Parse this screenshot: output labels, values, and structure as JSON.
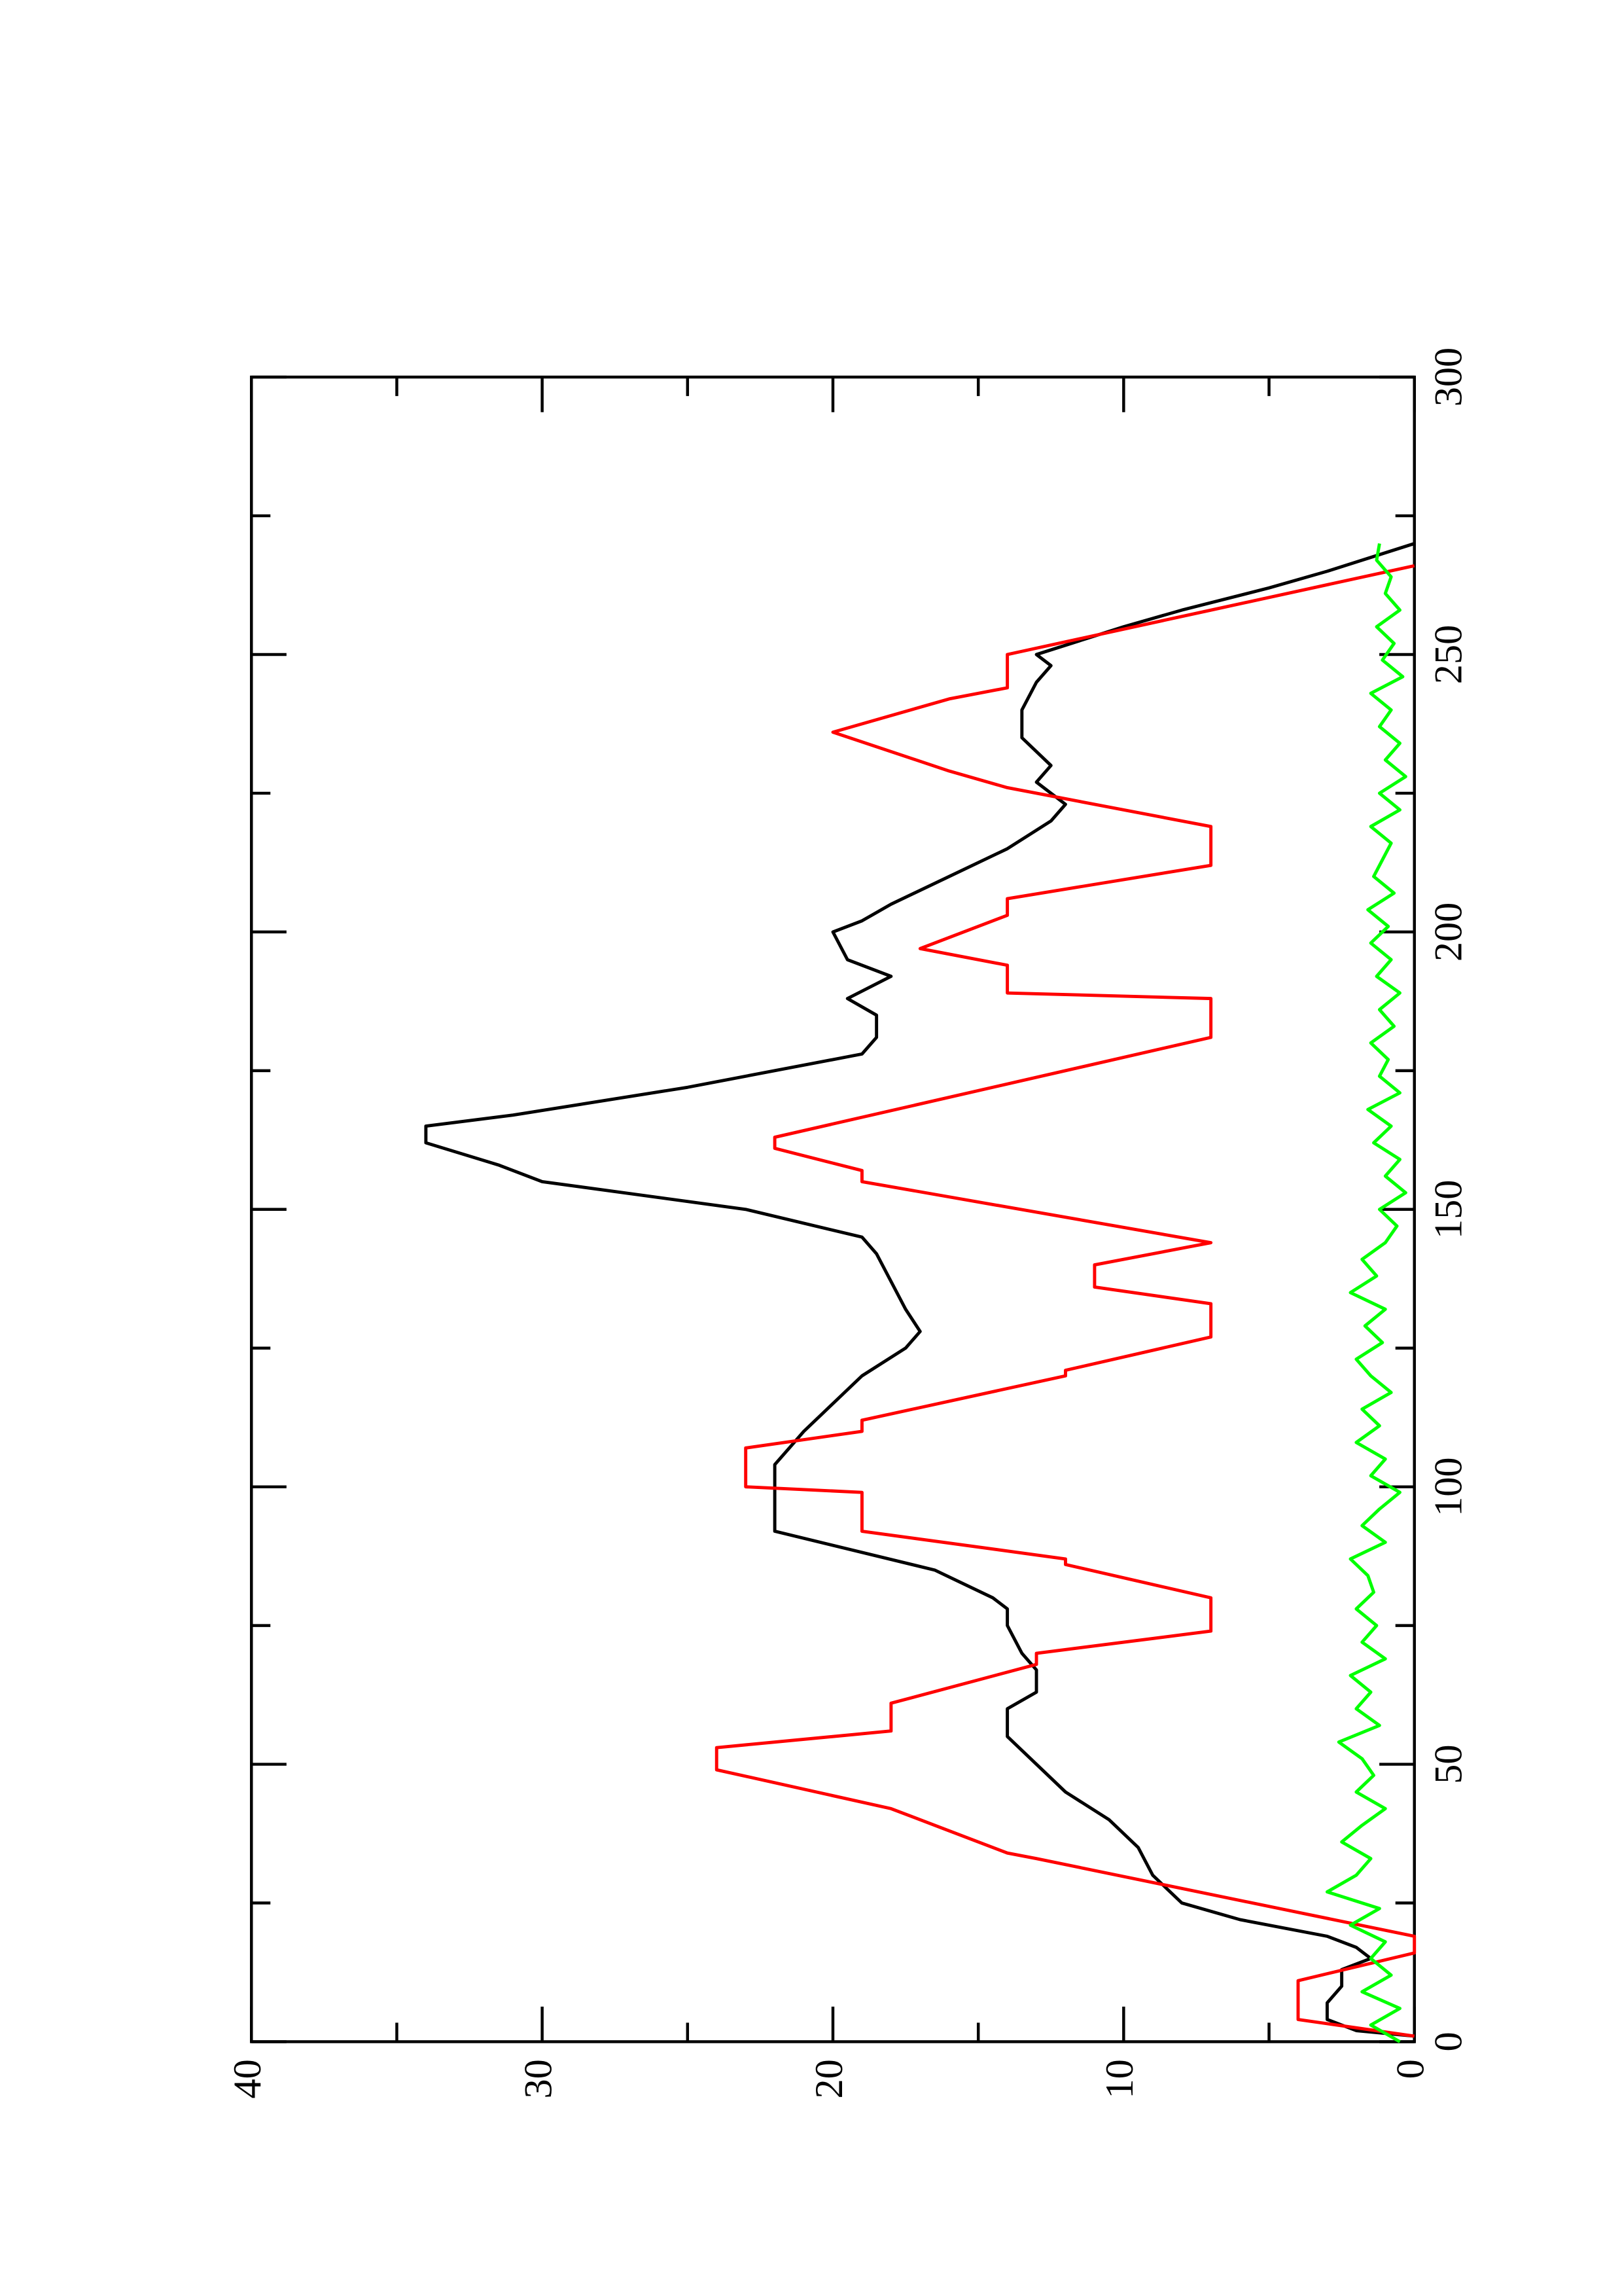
{
  "chart_data": {
    "type": "line",
    "rotated": true,
    "xlim": [
      0,
      300
    ],
    "xticks": [
      0,
      50,
      100,
      150,
      200,
      250,
      300
    ],
    "xticks_minor": [
      25,
      75,
      125,
      175,
      225,
      275
    ],
    "ylim": [
      0,
      40
    ],
    "yticks": [
      0,
      10,
      20,
      30,
      40
    ],
    "yticks_minor": [
      5,
      15,
      25,
      35
    ],
    "series": [
      {
        "color": "#000000",
        "x": [
          1,
          2,
          4,
          7,
          10,
          13,
          15,
          17,
          19,
          22,
          25,
          30,
          35,
          40,
          45,
          50,
          55,
          60,
          63,
          67,
          70,
          75,
          78,
          80,
          85,
          92,
          98,
          101,
          104,
          107,
          110,
          115,
          120,
          125,
          128,
          132,
          137,
          142,
          145,
          150,
          155,
          158,
          162,
          165,
          167,
          172,
          178,
          181,
          185,
          188,
          192,
          195,
          200,
          202,
          205,
          210,
          215,
          220,
          223,
          227,
          230,
          235,
          240,
          245,
          248,
          250,
          255,
          258,
          262,
          265,
          270
        ],
        "values": [
          0,
          2,
          3,
          3,
          2.5,
          2.5,
          1.5,
          2,
          3,
          6,
          8,
          9,
          9.5,
          10.5,
          12,
          13,
          14,
          14,
          13,
          13,
          13.5,
          14,
          14,
          14.5,
          16.5,
          22,
          22,
          22,
          22,
          21.5,
          21,
          20,
          19,
          17.5,
          17,
          17.5,
          18,
          18.5,
          19,
          23,
          30,
          31.5,
          34,
          34,
          31,
          25,
          19,
          18.5,
          18.5,
          19.5,
          18,
          19.5,
          20,
          19,
          18,
          16,
          14,
          12.5,
          12,
          13,
          12.5,
          13.5,
          13.5,
          13,
          12.5,
          13,
          10,
          8,
          5,
          3,
          0
        ]
      },
      {
        "color": "#ff0000",
        "x": [
          1,
          4,
          11,
          16,
          19,
          33,
          34,
          42,
          49,
          53,
          56,
          61,
          68,
          70,
          74,
          80,
          86,
          87,
          92,
          99,
          100,
          107,
          110,
          112,
          120,
          121,
          127,
          133,
          136,
          140,
          144,
          155,
          157,
          161,
          163,
          181,
          188,
          189,
          194,
          197,
          203,
          206,
          212,
          219,
          226,
          229,
          236,
          242,
          244,
          250,
          258,
          266
        ],
        "values": [
          0,
          4,
          4,
          0,
          0,
          13,
          14,
          18,
          24,
          24,
          18,
          18,
          13,
          13,
          7,
          7,
          12,
          12,
          19,
          19,
          23,
          23,
          19,
          19,
          12,
          12,
          7,
          7,
          11,
          11,
          7,
          19,
          19,
          22,
          22,
          7,
          7,
          14,
          14,
          17,
          14,
          14,
          7,
          7,
          14,
          16,
          20,
          16,
          14,
          14,
          7,
          0
        ]
      },
      {
        "color": "#00ff00",
        "x": [
          0,
          3,
          6,
          9,
          12,
          15,
          18,
          21,
          24,
          27,
          30,
          33,
          36,
          39,
          42,
          45,
          48,
          51,
          54,
          57,
          60,
          63,
          66,
          69,
          72,
          75,
          78,
          81,
          84,
          87,
          90,
          93,
          96,
          99,
          102,
          105,
          108,
          111,
          114,
          117,
          120,
          123,
          126,
          129,
          132,
          135,
          138,
          141,
          144,
          147,
          150,
          153,
          156,
          159,
          162,
          165,
          168,
          171,
          174,
          177,
          180,
          183,
          186,
          189,
          192,
          195,
          198,
          201,
          204,
          207,
          210,
          213,
          216,
          219,
          222,
          225,
          228,
          231,
          234,
          237,
          240,
          243,
          246,
          249,
          252,
          255,
          258,
          261,
          264,
          267,
          270
        ],
        "values": [
          0.5,
          1.5,
          0.5,
          1.8,
          0.8,
          1.5,
          1.0,
          2.2,
          1.2,
          3.0,
          2.0,
          1.5,
          2.5,
          1.8,
          1.0,
          2.0,
          1.4,
          1.8,
          2.6,
          1.2,
          2.0,
          1.5,
          2.2,
          1.0,
          1.8,
          1.3,
          2.0,
          1.4,
          1.6,
          2.2,
          1.0,
          1.8,
          1.2,
          0.5,
          1.5,
          1.0,
          2.0,
          1.2,
          1.8,
          0.8,
          1.5,
          2.0,
          1.1,
          1.7,
          1.0,
          2.2,
          1.3,
          1.8,
          1.0,
          0.6,
          1.2,
          0.3,
          1.0,
          0.5,
          1.4,
          0.8,
          1.6,
          0.5,
          1.2,
          0.9,
          1.5,
          0.7,
          1.2,
          0.5,
          1.3,
          0.8,
          1.5,
          0.9,
          1.6,
          0.7,
          1.4,
          1.1,
          0.8,
          1.5,
          0.5,
          1.2,
          0.3,
          1.0,
          0.5,
          1.2,
          0.8,
          1.5,
          0.4,
          1.1,
          0.7,
          1.3,
          0.5,
          1.0,
          0.8,
          1.3,
          1.2
        ]
      }
    ]
  }
}
